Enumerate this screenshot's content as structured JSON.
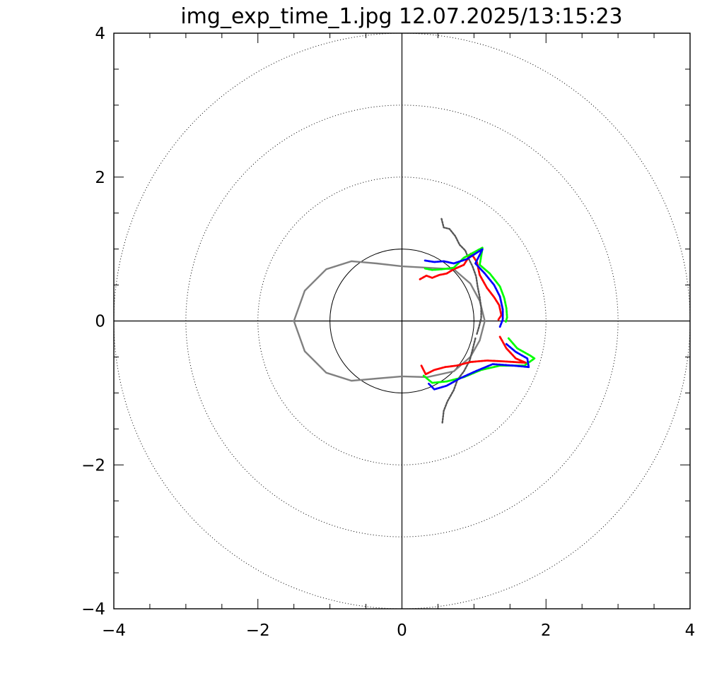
{
  "page": {
    "title": "img_exp_time_1.jpg 12.07.2025/13:15:23"
  },
  "chart_data": {
    "type": "scatter",
    "title": "img_exp_time_1.jpg 12.07.2025/13:15:23",
    "xlim": [
      -4,
      4
    ],
    "ylim": [
      -4,
      4
    ],
    "grid": false,
    "legend": "none",
    "colors": {
      "frame": "#000000",
      "dotted_circle": "#000000",
      "unit_circle": "#000000",
      "model_curve": "#808080",
      "gray_series": "#555555",
      "red_series": "#ff0000",
      "green_series": "#00ff00",
      "blue_series": "#0000ff"
    },
    "x_ticks": [
      -4,
      -2,
      0,
      2,
      4
    ],
    "y_ticks": [
      -4,
      -2,
      0,
      2,
      4
    ],
    "x_tick_labels": [
      "−4",
      "−2",
      "0",
      "2",
      "4"
    ],
    "y_tick_labels": [
      "−4",
      "−2",
      "0",
      "2",
      "4"
    ],
    "reference_circles": [
      {
        "radius": 1,
        "style": "solid"
      },
      {
        "radius": 2,
        "style": "dotted"
      },
      {
        "radius": 3,
        "style": "dotted"
      },
      {
        "radius": 4,
        "style": "dotted"
      }
    ],
    "axes_lines": {
      "horizontal_y": 0,
      "vertical_x": 0
    },
    "model_curve": [
      [
        1.15,
        0
      ],
      [
        1.08,
        0.28
      ],
      [
        0.95,
        0.52
      ],
      [
        0.72,
        0.72
      ],
      [
        0.35,
        0.74
      ],
      [
        0.0,
        0.76
      ],
      [
        -0.35,
        0.8
      ],
      [
        -0.7,
        0.83
      ],
      [
        -1.05,
        0.72
      ],
      [
        -1.35,
        0.42
      ],
      [
        -1.5,
        0.0
      ],
      [
        -1.35,
        -0.42
      ],
      [
        -1.05,
        -0.72
      ],
      [
        -0.7,
        -0.83
      ],
      [
        -0.35,
        -0.8
      ],
      [
        0.0,
        -0.77
      ],
      [
        0.35,
        -0.78
      ],
      [
        0.72,
        -0.7
      ],
      [
        0.95,
        -0.5
      ],
      [
        1.08,
        -0.27
      ],
      [
        1.15,
        0
      ]
    ],
    "series": [
      {
        "name": "gray",
        "segments": [
          [
            [
              0.55,
              1.42
            ],
            [
              0.58,
              1.3
            ],
            [
              0.66,
              1.28
            ],
            [
              0.74,
              1.18
            ],
            [
              0.8,
              1.06
            ],
            [
              0.88,
              0.98
            ],
            [
              0.92,
              0.88
            ],
            [
              0.98,
              0.76
            ],
            [
              1.03,
              0.62
            ],
            [
              1.05,
              0.48
            ],
            [
              1.08,
              0.33
            ],
            [
              1.1,
              0.18
            ],
            [
              1.1,
              0.04
            ],
            [
              1.07,
              -0.08
            ],
            [
              1.04,
              -0.18
            ]
          ],
          [
            [
              1.02,
              -0.24
            ],
            [
              0.98,
              -0.4
            ],
            [
              0.94,
              -0.55
            ],
            [
              0.86,
              -0.7
            ],
            [
              0.77,
              -0.82
            ],
            [
              0.72,
              -0.96
            ],
            [
              0.63,
              -1.12
            ],
            [
              0.58,
              -1.25
            ],
            [
              0.56,
              -1.42
            ]
          ]
        ]
      },
      {
        "name": "red",
        "segments": [
          [
            [
              0.25,
              0.58
            ],
            [
              0.34,
              0.63
            ],
            [
              0.42,
              0.6
            ],
            [
              0.52,
              0.64
            ],
            [
              0.62,
              0.66
            ],
            [
              0.72,
              0.72
            ],
            [
              0.86,
              0.78
            ],
            [
              0.96,
              0.94
            ],
            [
              1.04,
              0.82
            ],
            [
              1.08,
              0.64
            ],
            [
              1.18,
              0.46
            ],
            [
              1.28,
              0.33
            ],
            [
              1.35,
              0.22
            ],
            [
              1.38,
              0.08
            ],
            [
              1.34,
              0.02
            ]
          ],
          [
            [
              1.36,
              -0.22
            ],
            [
              1.45,
              -0.38
            ],
            [
              1.58,
              -0.52
            ],
            [
              1.72,
              -0.58
            ],
            [
              1.4,
              -0.56
            ],
            [
              1.18,
              -0.55
            ],
            [
              0.95,
              -0.57
            ],
            [
              0.76,
              -0.62
            ],
            [
              0.6,
              -0.64
            ],
            [
              0.45,
              -0.68
            ],
            [
              0.33,
              -0.74
            ],
            [
              0.27,
              -0.62
            ]
          ]
        ]
      },
      {
        "name": "green",
        "segments": [
          [
            [
              0.32,
              0.73
            ],
            [
              0.42,
              0.71
            ],
            [
              0.56,
              0.72
            ],
            [
              0.72,
              0.74
            ],
            [
              0.86,
              0.88
            ],
            [
              1.12,
              1.02
            ],
            [
              1.08,
              0.78
            ],
            [
              1.22,
              0.66
            ],
            [
              1.36,
              0.48
            ],
            [
              1.42,
              0.32
            ],
            [
              1.45,
              0.18
            ],
            [
              1.46,
              0.05
            ],
            [
              1.44,
              -0.02
            ]
          ],
          [
            [
              1.48,
              -0.24
            ],
            [
              1.6,
              -0.38
            ],
            [
              1.78,
              -0.48
            ],
            [
              1.84,
              -0.52
            ],
            [
              1.7,
              -0.62
            ],
            [
              1.36,
              -0.62
            ],
            [
              1.1,
              -0.68
            ],
            [
              0.86,
              -0.78
            ],
            [
              0.62,
              -0.84
            ],
            [
              0.42,
              -0.86
            ],
            [
              0.3,
              -0.76
            ]
          ]
        ]
      },
      {
        "name": "blue",
        "segments": [
          [
            [
              0.32,
              0.84
            ],
            [
              0.45,
              0.82
            ],
            [
              0.58,
              0.83
            ],
            [
              0.72,
              0.8
            ],
            [
              0.9,
              0.86
            ],
            [
              1.12,
              1.0
            ],
            [
              1.02,
              0.8
            ],
            [
              1.15,
              0.66
            ],
            [
              1.28,
              0.5
            ],
            [
              1.36,
              0.34
            ],
            [
              1.4,
              0.16
            ],
            [
              1.4,
              0.02
            ],
            [
              1.36,
              -0.08
            ]
          ],
          [
            [
              1.45,
              -0.32
            ],
            [
              1.58,
              -0.43
            ],
            [
              1.74,
              -0.52
            ],
            [
              1.76,
              -0.64
            ],
            [
              1.55,
              -0.62
            ],
            [
              1.26,
              -0.6
            ],
            [
              1.02,
              -0.7
            ],
            [
              0.8,
              -0.8
            ],
            [
              0.62,
              -0.9
            ],
            [
              0.45,
              -0.95
            ],
            [
              0.37,
              -0.87
            ]
          ]
        ]
      }
    ]
  }
}
